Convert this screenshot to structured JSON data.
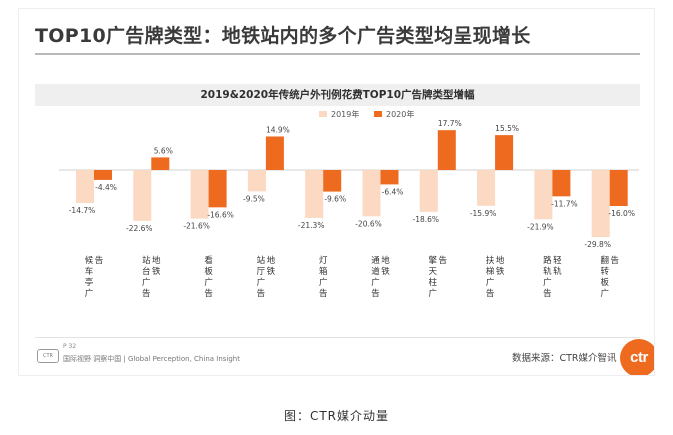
{
  "headline": "TOP10广告牌类型：地铁站内的多个广告类型均呈现增长",
  "footer": {
    "page": "P 32",
    "tagline": "国际视野 洞察中国 | Global Perception, China Insight",
    "source": "数据来源：CTR媒介智讯",
    "logo": "ctr",
    "badge": "CTR"
  },
  "caption": "图：CTR媒介动量",
  "colors": {
    "y2019": "#fbd9c3",
    "y2020": "#ee6a1f"
  },
  "chart_data": {
    "type": "bar",
    "title": "2019&2020年传统户外刊例花费TOP10广告牌类型增幅",
    "categories": [
      "候车亭广告",
      "站台广告地铁",
      "看板广告",
      "站厅广告地铁",
      "灯箱广告",
      "通道广告地铁",
      "擎天柱广告",
      "扶梯广告地铁",
      "路轨广告轻轨",
      "翻转板广告"
    ],
    "series": [
      {
        "name": "2019年",
        "values": [
          -14.7,
          -22.6,
          -21.6,
          -9.5,
          -21.3,
          -20.6,
          -18.6,
          -15.9,
          -21.9,
          -29.8
        ]
      },
      {
        "name": "2020年",
        "values": [
          -4.4,
          5.6,
          -16.6,
          14.9,
          -9.6,
          -6.4,
          17.7,
          15.5,
          -11.7,
          -16.0
        ]
      }
    ],
    "value_labels": {
      "2019年": [
        "-14.7%",
        "-22.6%",
        "-21.6%",
        "-9.5%",
        "-21.3%",
        "-20.6%",
        "-18.6%",
        "-15.9%",
        "-21.9%",
        "-29.8%"
      ],
      "2020年": [
        "-4.4%",
        "5.6%",
        "-16.6%",
        "14.9%",
        "-9.6%",
        "-6.4%",
        "17.7%",
        "15.5%",
        "-11.7%",
        "-16.0%"
      ]
    },
    "ylim": [
      -30,
      16
    ],
    "legend": "top-center",
    "grid": false
  }
}
